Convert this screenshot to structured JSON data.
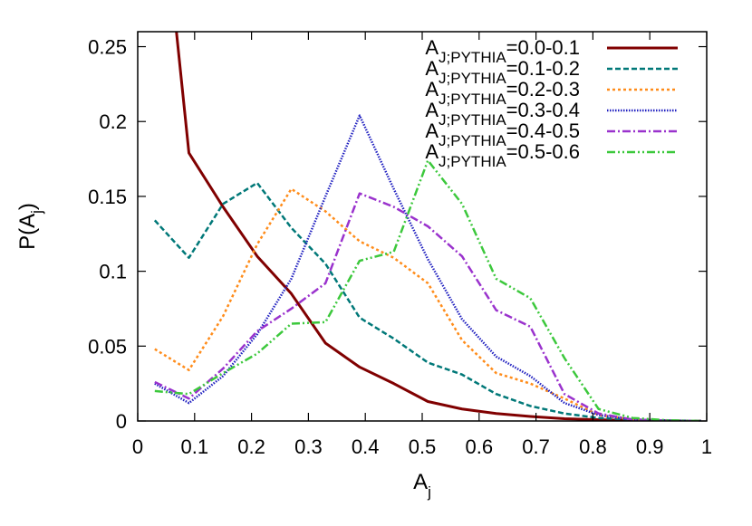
{
  "chart_data": {
    "type": "line",
    "title": "",
    "xlabel": {
      "main": "A",
      "sub": "j"
    },
    "ylabel": {
      "main": "P(A",
      "sub": "j",
      "tail": ")"
    },
    "xlim": [
      0,
      1
    ],
    "ylim": [
      0,
      0.26
    ],
    "x_ticks": [
      0,
      0.1,
      0.2,
      0.3,
      0.4,
      0.5,
      0.6,
      0.7,
      0.8,
      0.9,
      1
    ],
    "x_tick_labels": [
      "0",
      "0.1",
      "0.2",
      "0.3",
      "0.4",
      "0.5",
      "0.6",
      "0.7",
      "0.8",
      "0.9",
      "1"
    ],
    "y_ticks": [
      0,
      0.05,
      0.1,
      0.15,
      0.2,
      0.25
    ],
    "y_tick_labels": [
      "0",
      "0.05",
      "0.1",
      "0.15",
      "0.2",
      "0.25"
    ],
    "grid": false,
    "legend_position": "top-right",
    "series": [
      {
        "name": {
          "main": "A",
          "sub": "J;PYTHIA",
          "tail": "=0.0-0.1"
        },
        "color": "#800000",
        "dash": "solid",
        "x": [
          0.03,
          0.09,
          0.15,
          0.21,
          0.27,
          0.33,
          0.39,
          0.45,
          0.51,
          0.57,
          0.63,
          0.69,
          0.75,
          0.81,
          0.87,
          0.93,
          0.99
        ],
        "y": [
          0.4,
          0.179,
          0.143,
          0.11,
          0.085,
          0.052,
          0.036,
          0.025,
          0.013,
          0.008,
          0.005,
          0.003,
          0.0015,
          0.0008,
          0.0003,
          0.0001,
          0.0
        ]
      },
      {
        "name": {
          "main": "A",
          "sub": "J;PYTHIA",
          "tail": "=0.1-0.2"
        },
        "color": "#007878",
        "dash": "dashed",
        "x": [
          0.03,
          0.09,
          0.15,
          0.21,
          0.27,
          0.33,
          0.39,
          0.45,
          0.51,
          0.57,
          0.63,
          0.69,
          0.75,
          0.81,
          0.87,
          0.93,
          0.99
        ],
        "y": [
          0.134,
          0.109,
          0.145,
          0.159,
          0.129,
          0.105,
          0.069,
          0.055,
          0.039,
          0.031,
          0.018,
          0.01,
          0.005,
          0.002,
          0.001,
          0.0003,
          0.0
        ]
      },
      {
        "name": {
          "main": "A",
          "sub": "J;PYTHIA",
          "tail": "=0.2-0.3"
        },
        "color": "#ff8c1a",
        "dash": "dotted",
        "x": [
          0.03,
          0.09,
          0.15,
          0.21,
          0.27,
          0.33,
          0.39,
          0.45,
          0.51,
          0.57,
          0.63,
          0.69,
          0.75,
          0.81,
          0.87,
          0.93,
          0.99
        ],
        "y": [
          0.048,
          0.034,
          0.07,
          0.118,
          0.155,
          0.14,
          0.12,
          0.109,
          0.092,
          0.054,
          0.032,
          0.025,
          0.015,
          0.004,
          0.001,
          0.0003,
          0.0
        ]
      },
      {
        "name": {
          "main": "A",
          "sub": "J;PYTHIA",
          "tail": "=0.3-0.4"
        },
        "color": "#2020c0",
        "dash": "dense-dotted",
        "x": [
          0.03,
          0.09,
          0.15,
          0.21,
          0.27,
          0.33,
          0.39,
          0.45,
          0.51,
          0.57,
          0.63,
          0.69,
          0.75,
          0.81,
          0.87,
          0.93,
          0.99
        ],
        "y": [
          0.025,
          0.012,
          0.03,
          0.058,
          0.095,
          0.15,
          0.204,
          0.155,
          0.108,
          0.068,
          0.043,
          0.03,
          0.012,
          0.004,
          0.001,
          0.0003,
          0.0
        ]
      },
      {
        "name": {
          "main": "A",
          "sub": "J;PYTHIA",
          "tail": "=0.4-0.5"
        },
        "color": "#9a32cd",
        "dash": "dash-dot",
        "x": [
          0.03,
          0.09,
          0.15,
          0.21,
          0.27,
          0.33,
          0.39,
          0.45,
          0.51,
          0.57,
          0.63,
          0.69,
          0.75,
          0.81,
          0.87,
          0.93,
          0.99
        ],
        "y": [
          0.026,
          0.015,
          0.035,
          0.06,
          0.075,
          0.092,
          0.152,
          0.143,
          0.13,
          0.11,
          0.074,
          0.063,
          0.018,
          0.005,
          0.001,
          0.0003,
          0.0
        ]
      },
      {
        "name": {
          "main": "A",
          "sub": "J;PYTHIA",
          "tail": "=0.5-0.6"
        },
        "color": "#3cc83c",
        "dash": "dash-dot-dot",
        "x": [
          0.03,
          0.09,
          0.15,
          0.21,
          0.27,
          0.33,
          0.39,
          0.45,
          0.51,
          0.57,
          0.63,
          0.69,
          0.75,
          0.81,
          0.87,
          0.93,
          0.99
        ],
        "y": [
          0.02,
          0.018,
          0.032,
          0.045,
          0.065,
          0.066,
          0.107,
          0.113,
          0.174,
          0.145,
          0.095,
          0.082,
          0.042,
          0.008,
          0.002,
          0.0005,
          0.0
        ]
      }
    ]
  }
}
